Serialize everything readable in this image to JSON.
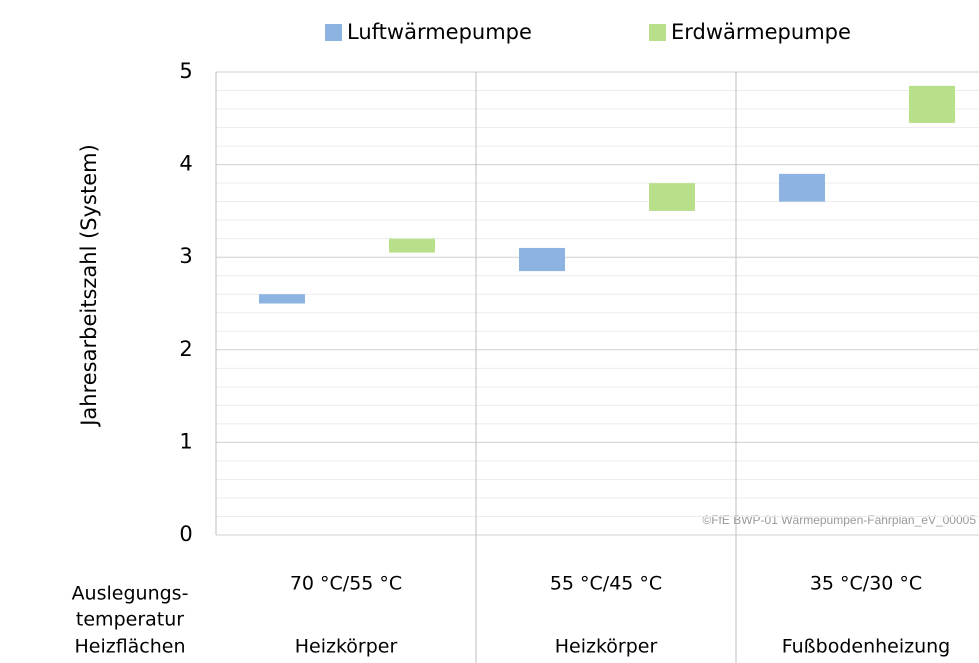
{
  "chart_data": {
    "type": "floating_bar",
    "y_label": "Jahresarbeitszahl (System)",
    "row_label": [
      "Auslegungs-",
      "temperatur",
      "Heizflächen"
    ],
    "categories": [
      "70 °C/55 °C",
      "55 °C/45 °C",
      "35 °C/30 °C"
    ],
    "category_types": [
      "Heizkörper",
      "Heizkörper",
      "Fußbodenheizung"
    ],
    "series": [
      {
        "name": "Luftwärmepumpe",
        "color": "#8db3e2",
        "values": [
          [
            2.5,
            2.6
          ],
          [
            2.85,
            3.1
          ],
          [
            3.6,
            3.9
          ]
        ]
      },
      {
        "name": "Erdwärmepumpe",
        "color": "#b8e08a",
        "values": [
          [
            3.05,
            3.2
          ],
          [
            3.5,
            3.8
          ],
          [
            4.45,
            4.85
          ]
        ]
      }
    ],
    "ylim": [
      0,
      5
    ],
    "yticks": [
      0,
      1,
      2,
      3,
      4,
      5
    ],
    "yminor": [
      0.2,
      0.4,
      0.6,
      0.8,
      1.2,
      1.4,
      1.6,
      1.8,
      2.2,
      2.4,
      2.6,
      2.8,
      3.2,
      3.4,
      3.6,
      3.8,
      4.2,
      4.4,
      4.6,
      4.8
    ],
    "grid": true,
    "watermark": "©FfE BWP-01 Wärmepumpen-Fahrplan_eV_00005"
  }
}
